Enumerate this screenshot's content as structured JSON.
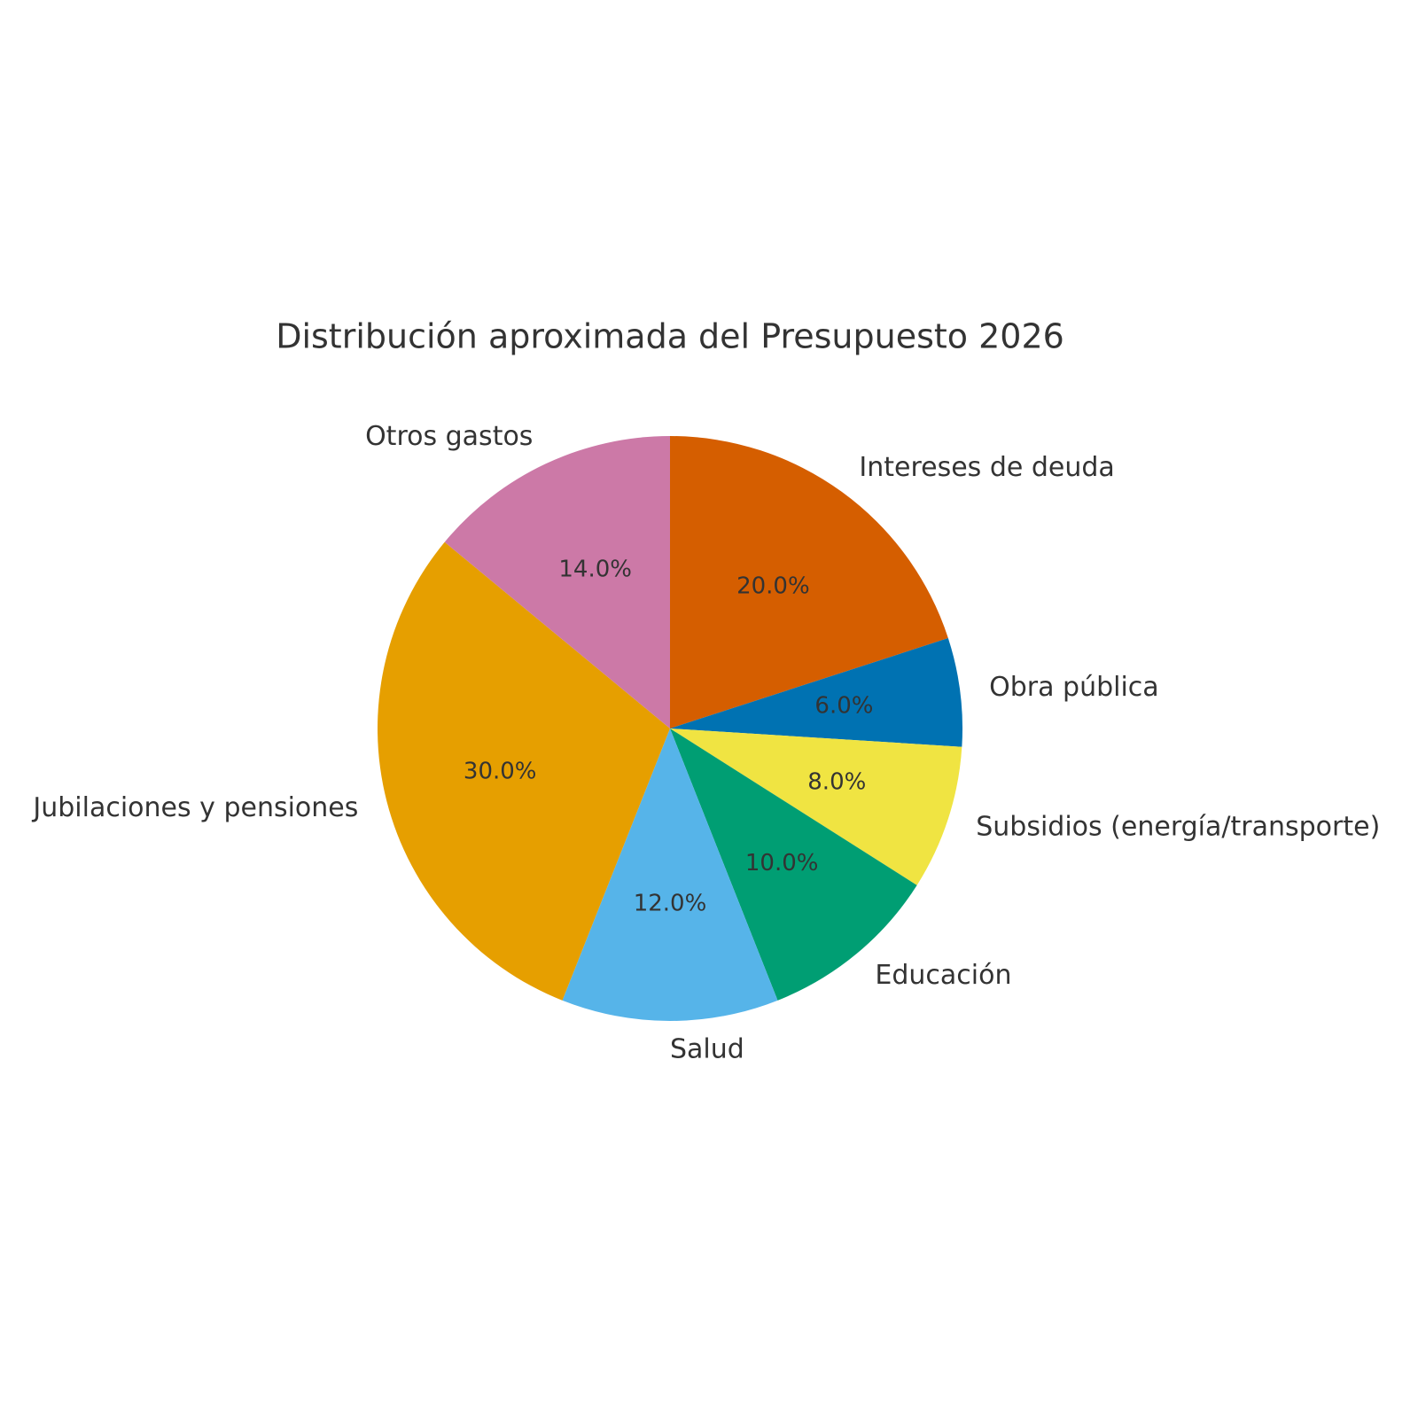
{
  "chart_data": {
    "type": "pie",
    "title": "Distribución aproximada del Presupuesto 2026",
    "categories": [
      "Intereses de deuda",
      "Obra pública",
      "Subsidios (energía/transporte)",
      "Educación",
      "Salud",
      "Jubilaciones y pensiones",
      "Otros gastos"
    ],
    "values": [
      20,
      6,
      8,
      10,
      12,
      30,
      14
    ],
    "value_labels": [
      "20.0%",
      "6.0%",
      "8.0%",
      "10.0%",
      "12.0%",
      "30.0%",
      "14.0%"
    ],
    "colors": [
      "#d55e00",
      "#0072b2",
      "#f0e442",
      "#009e73",
      "#56b4e9",
      "#e69f00",
      "#cc79a7"
    ]
  }
}
